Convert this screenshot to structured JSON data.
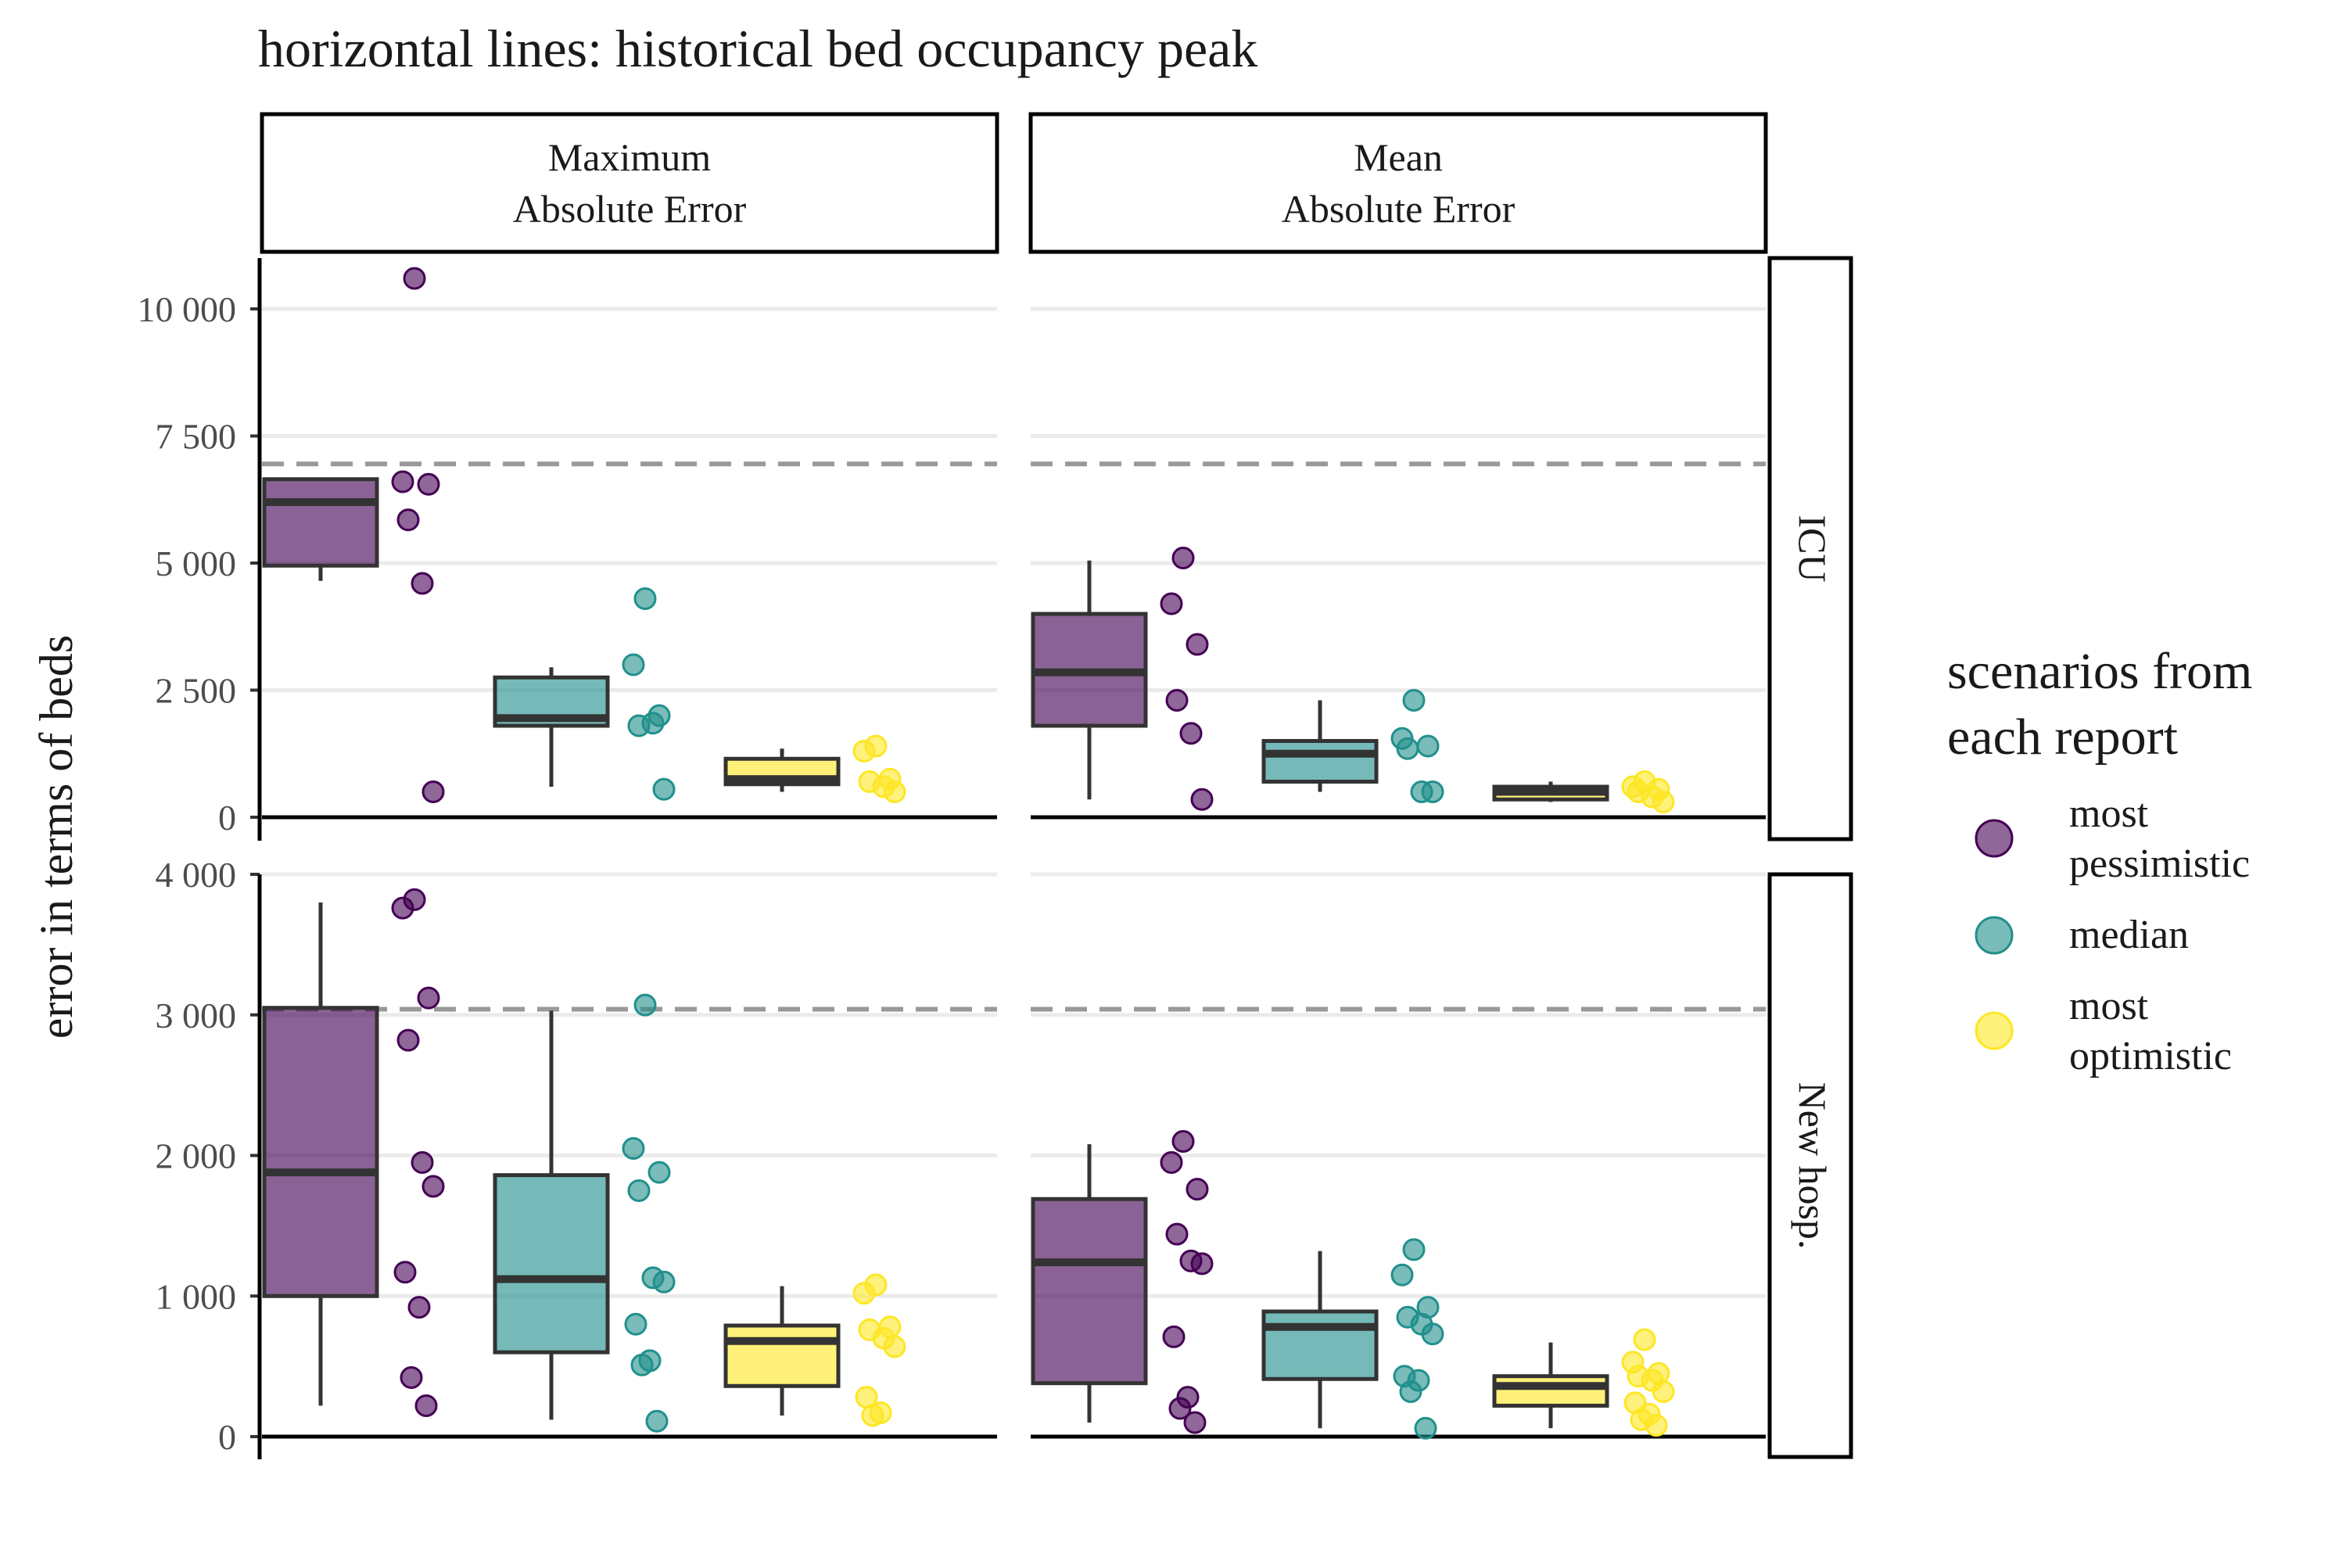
{
  "chart_data": {
    "type": "box",
    "title": "horizontal lines: historical bed occupancy peak",
    "ylabel": "error in terms of beds",
    "xlabel": "",
    "facet_columns": [
      "Maximum\nAbsolute Error",
      "Mean\nAbsolute Error"
    ],
    "facet_rows": [
      "ICU",
      "New hosp."
    ],
    "categories": [
      "most pessimistic",
      "median",
      "most optimistic"
    ],
    "legend": {
      "title": "scenarios from\neach report",
      "position": "right",
      "entries": [
        {
          "label": "most\npessimistic",
          "color": "#440154"
        },
        {
          "label": "median",
          "color": "#21908C"
        },
        {
          "label": "most\noptimistic",
          "color": "#FDE725"
        }
      ]
    },
    "grid": true,
    "rows": [
      {
        "name": "ICU",
        "ylim": [
          0,
          11000
        ],
        "yticks": [
          0,
          2500,
          5000,
          7500,
          10000
        ],
        "ytick_labels": [
          "0",
          "2 500",
          "5 000",
          "7 500",
          "10 000"
        ],
        "reference_line": 6950,
        "panels": [
          {
            "column": "Maximum\nAbsolute Error",
            "boxes": [
              {
                "category": "most pessimistic",
                "whisker_low": 4650,
                "q1": 4950,
                "median": 6200,
                "q3": 6650,
                "whisker_high": 6650,
                "points": [
                  10600,
                  6600,
                  6550,
                  5850,
                  4600,
                  500
                ]
              },
              {
                "category": "median",
                "whisker_low": 600,
                "q1": 1800,
                "median": 1950,
                "q3": 2750,
                "whisker_high": 2950,
                "points": [
                  4300,
                  3000,
                  2000,
                  1800,
                  1850,
                  550
                ]
              },
              {
                "category": "most optimistic",
                "whisker_low": 500,
                "q1": 650,
                "median": 750,
                "q3": 1150,
                "whisker_high": 1350,
                "points": [
                  1400,
                  1300,
                  750,
                  700,
                  600,
                  500
                ]
              }
            ]
          },
          {
            "column": "Mean\nAbsolute Error",
            "boxes": [
              {
                "category": "most pessimistic",
                "whisker_low": 350,
                "q1": 1800,
                "median": 2850,
                "q3": 4000,
                "whisker_high": 5050,
                "points": [
                  5100,
                  4200,
                  3400,
                  2300,
                  1650,
                  350
                ]
              },
              {
                "category": "median",
                "whisker_low": 500,
                "q1": 700,
                "median": 1250,
                "q3": 1500,
                "whisker_high": 2300,
                "points": [
                  2300,
                  1550,
                  1400,
                  1350,
                  500,
                  500
                ]
              },
              {
                "category": "most optimistic",
                "whisker_low": 300,
                "q1": 350,
                "median": 500,
                "q3": 600,
                "whisker_high": 700,
                "points": [
                  700,
                  600,
                  550,
                  500,
                  400,
                  300
                ]
              }
            ]
          }
        ]
      },
      {
        "name": "New hosp.",
        "ylim": [
          0,
          4000
        ],
        "yticks": [
          0,
          1000,
          2000,
          3000,
          4000
        ],
        "ytick_labels": [
          "0",
          "1 000",
          "2 000",
          "3 000",
          "4 000"
        ],
        "reference_line": 3040,
        "panels": [
          {
            "column": "Maximum\nAbsolute Error",
            "boxes": [
              {
                "category": "most pessimistic",
                "whisker_low": 220,
                "q1": 1000,
                "median": 1880,
                "q3": 3050,
                "whisker_high": 3800,
                "points": [
                  3820,
                  3760,
                  3120,
                  2820,
                  1950,
                  1780,
                  1170,
                  920,
                  420,
                  220
                ]
              },
              {
                "category": "median",
                "whisker_low": 120,
                "q1": 600,
                "median": 1120,
                "q3": 1860,
                "whisker_high": 3030,
                "points": [
                  3070,
                  2050,
                  1880,
                  1750,
                  1130,
                  1100,
                  800,
                  540,
                  510,
                  110
                ]
              },
              {
                "category": "most optimistic",
                "whisker_low": 150,
                "q1": 360,
                "median": 680,
                "q3": 790,
                "whisker_high": 1070,
                "points": [
                  1080,
                  1020,
                  780,
                  760,
                  700,
                  640,
                  280,
                  170,
                  150
                ]
              }
            ]
          },
          {
            "column": "Mean\nAbsolute Error",
            "boxes": [
              {
                "category": "most pessimistic",
                "whisker_low": 100,
                "q1": 380,
                "median": 1240,
                "q3": 1690,
                "whisker_high": 2080,
                "points": [
                  2100,
                  1950,
                  1760,
                  1440,
                  1250,
                  1230,
                  710,
                  280,
                  200,
                  100
                ]
              },
              {
                "category": "median",
                "whisker_low": 60,
                "q1": 410,
                "median": 780,
                "q3": 890,
                "whisker_high": 1320,
                "points": [
                  1330,
                  1150,
                  920,
                  850,
                  800,
                  730,
                  430,
                  400,
                  320,
                  60
                ]
              },
              {
                "category": "most optimistic",
                "whisker_low": 60,
                "q1": 220,
                "median": 360,
                "q3": 430,
                "whisker_high": 670,
                "points": [
                  690,
                  530,
                  450,
                  430,
                  400,
                  320,
                  240,
                  160,
                  120,
                  80
                ]
              }
            ]
          }
        ]
      }
    ]
  }
}
